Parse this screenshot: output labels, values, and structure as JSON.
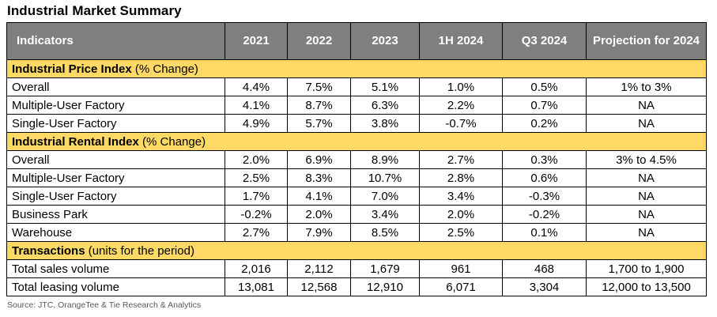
{
  "title": "Industrial Market Summary",
  "headers": [
    "Indicators",
    "2021",
    "2022",
    "2023",
    "1H 2024",
    "Q3 2024",
    "Projection for 2024"
  ],
  "sections": [
    {
      "name": "Industrial Price Index",
      "suffix": " (% Change)",
      "rows": [
        {
          "label": "Overall",
          "values": [
            "4.4%",
            "7.5%",
            "5.1%",
            "1.0%",
            "0.5%",
            "1% to 3%"
          ]
        },
        {
          "label": "Multiple-User Factory",
          "values": [
            "4.1%",
            "8.7%",
            "6.3%",
            "2.2%",
            "0.7%",
            "NA"
          ]
        },
        {
          "label": "Single-User Factory",
          "values": [
            "4.9%",
            "5.7%",
            "3.8%",
            "-0.7%",
            "0.2%",
            "NA"
          ]
        }
      ]
    },
    {
      "name": "Industrial Rental Index",
      "suffix": " (% Change)",
      "rows": [
        {
          "label": "Overall",
          "values": [
            "2.0%",
            "6.9%",
            "8.9%",
            "2.7%",
            "0.3%",
            "3% to 4.5%"
          ]
        },
        {
          "label": "Multiple-User Factory",
          "values": [
            "2.5%",
            "8.3%",
            "10.7%",
            "2.8%",
            "0.6%",
            "NA"
          ]
        },
        {
          "label": "Single-User Factory",
          "values": [
            "1.7%",
            "4.1%",
            "7.0%",
            "3.4%",
            "-0.3%",
            "NA"
          ]
        },
        {
          "label": "Business Park",
          "values": [
            "-0.2%",
            "2.0%",
            "3.4%",
            "2.0%",
            "-0.2%",
            "NA"
          ]
        },
        {
          "label": "Warehouse",
          "values": [
            "2.7%",
            "7.9%",
            "8.5%",
            "2.5%",
            "0.1%",
            "NA"
          ]
        }
      ]
    },
    {
      "name": "Transactions",
      "suffix": " (units for the period)",
      "rows": [
        {
          "label": "Total sales volume",
          "values": [
            "2,016",
            "2,112",
            "1,679",
            "961",
            "468",
            "1,700 to 1,900"
          ]
        },
        {
          "label": "Total leasing volume",
          "values": [
            "13,081",
            "12,568",
            "12,910",
            "6,071",
            "3,304",
            "12,000 to 13,500"
          ]
        }
      ]
    }
  ],
  "source": "Source: JTC, OrangeTee & Tie Research & Analytics",
  "colors": {
    "header_bg": "#7f7f7f",
    "section_bg": "#ffd966"
  }
}
